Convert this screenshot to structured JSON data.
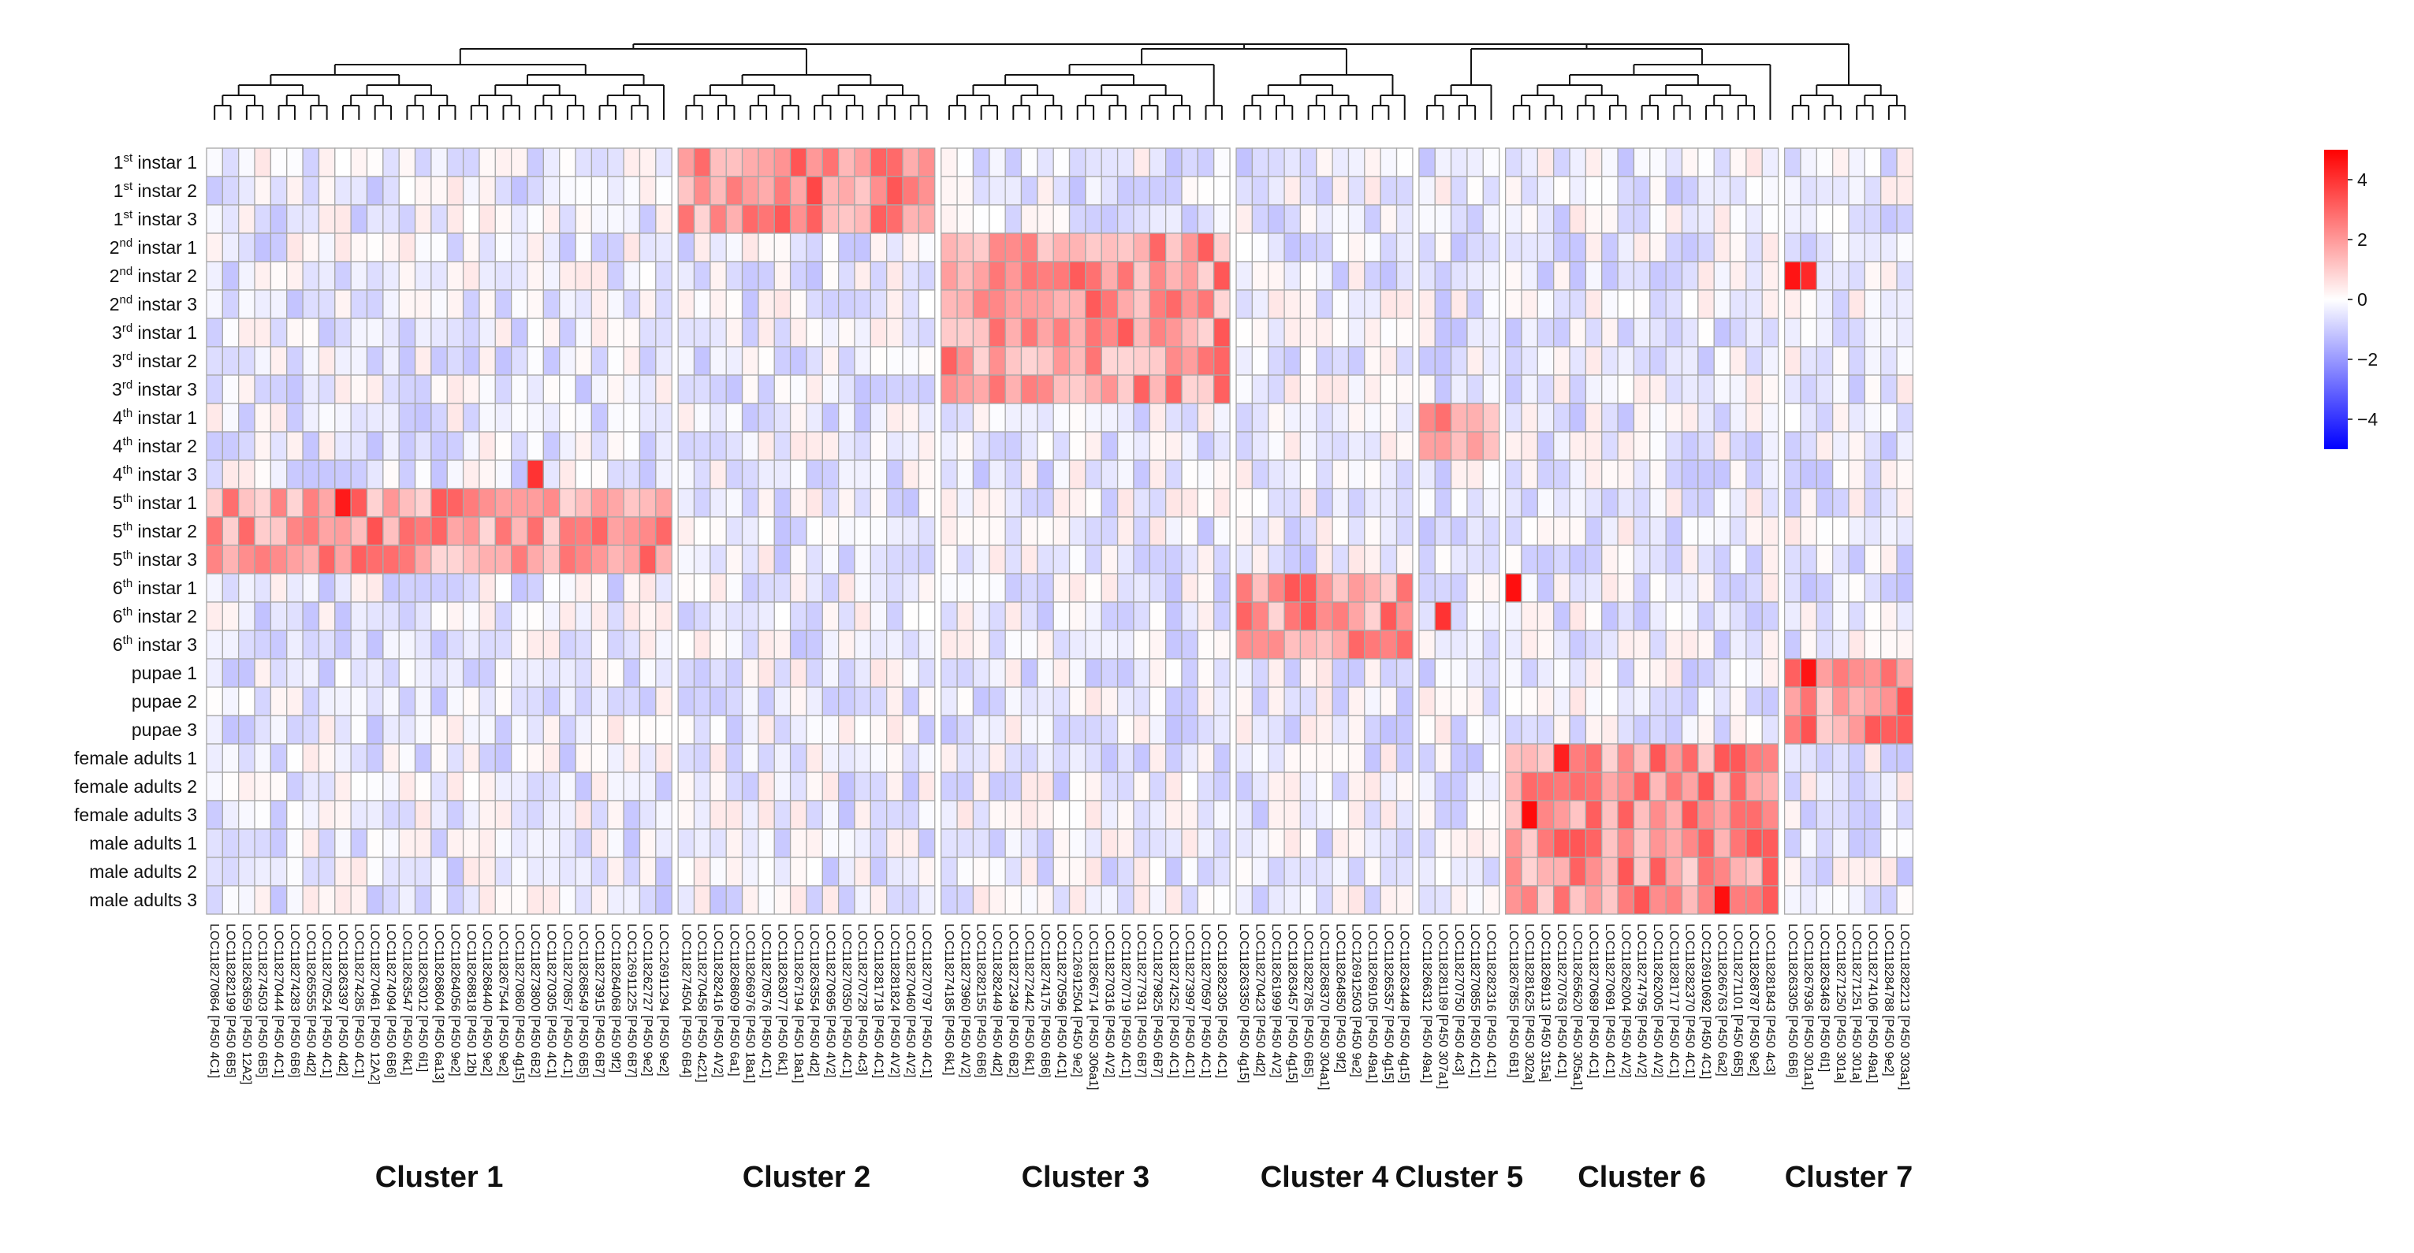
{
  "chart_data": {
    "type": "heatmap",
    "title": "",
    "rows": [
      {
        "label": "instar 1",
        "sup": "st",
        "num": "1"
      },
      {
        "label": "instar 2",
        "sup": "st",
        "num": "1"
      },
      {
        "label": "instar 3",
        "sup": "st",
        "num": "1"
      },
      {
        "label": "instar 1",
        "sup": "nd",
        "num": "2"
      },
      {
        "label": "instar 2",
        "sup": "nd",
        "num": "2"
      },
      {
        "label": "instar 3",
        "sup": "nd",
        "num": "2"
      },
      {
        "label": "instar 1",
        "sup": "rd",
        "num": "3"
      },
      {
        "label": "instar 2",
        "sup": "rd",
        "num": "3"
      },
      {
        "label": "instar 3",
        "sup": "rd",
        "num": "3"
      },
      {
        "label": "instar 1",
        "sup": "th",
        "num": "4"
      },
      {
        "label": "instar 2",
        "sup": "th",
        "num": "4"
      },
      {
        "label": "instar 3",
        "sup": "th",
        "num": "4"
      },
      {
        "label": "instar 1",
        "sup": "th",
        "num": "5"
      },
      {
        "label": "instar 2",
        "sup": "th",
        "num": "5"
      },
      {
        "label": "instar 3",
        "sup": "th",
        "num": "5"
      },
      {
        "label": "instar 1",
        "sup": "th",
        "num": "6"
      },
      {
        "label": "instar 2",
        "sup": "th",
        "num": "6"
      },
      {
        "label": "instar 3",
        "sup": "th",
        "num": "6"
      },
      {
        "label": "pupae 1",
        "sup": "",
        "num": ""
      },
      {
        "label": "pupae 2",
        "sup": "",
        "num": ""
      },
      {
        "label": "pupae 3",
        "sup": "",
        "num": ""
      },
      {
        "label": "female adults 1",
        "sup": "",
        "num": ""
      },
      {
        "label": "female adults 2",
        "sup": "",
        "num": ""
      },
      {
        "label": "female adults 3",
        "sup": "",
        "num": ""
      },
      {
        "label": "male adults 1",
        "sup": "",
        "num": ""
      },
      {
        "label": "male adults 2",
        "sup": "",
        "num": ""
      },
      {
        "label": "male adults 3",
        "sup": "",
        "num": ""
      }
    ],
    "clusters": [
      {
        "name": "Cluster 1",
        "stages": [
          12,
          13,
          14
        ],
        "genes": [
          "LOC118270864 [P450 4C1]",
          "LOC118282199 [P450 6B5]",
          "LOC118263659 [P450 12A2]",
          "LOC118274503 [P450 6B5]",
          "LOC118270444 [P450 4C1]",
          "LOC118274283 [P450 6B6]",
          "LOC118265555 [P450 4d2]",
          "LOC118270524 [P450 4C1]",
          "LOC118263397 [P450 4d2]",
          "LOC118274285 [P450 4C1]",
          "LOC118270461 [P450 12A2]",
          "LOC118274094 [P450 6B6]",
          "LOC118263547 [P450 6k1]",
          "LOC118263012 [P450 6l1]",
          "LOC118268604 [P450 6a13]",
          "LOC118264056 [P450 9e2]",
          "LOC118268818 [P450 12b]",
          "LOC118268440 [P450 9e2]",
          "LOC118267544 [P450 9e2]",
          "LOC118270860 [P450 4g15]",
          "LOC118273800 [P450 6B2]",
          "LOC118270305 [P450 4C1]",
          "LOC118270857 [P450 4C1]",
          "LOC118268549 [P450 6B5]",
          "LOC118273915 [P450 6B7]",
          "LOC118264068 [P450 9f2]",
          "LOC126911225 [P450 6B7]",
          "LOC118262727 [P450 9e2]",
          "LOC126911294 [P450 9e2]"
        ]
      },
      {
        "name": "Cluster 2",
        "stages": [
          0,
          1,
          2
        ],
        "genes": [
          "LOC118274504 [P450 6B4]",
          "LOC118270458 [P450 4c21]",
          "LOC118282416 [P450 4V2]",
          "LOC118268609 [P450 6a1]",
          "LOC118266976 [P450 18a1]",
          "LOC118270576 [P450 4C1]",
          "LOC118263077 [P450 6k1]",
          "LOC118267194 [P450 18a1]",
          "LOC118263554 [P450 4d2]",
          "LOC118270695 [P450 4V2]",
          "LOC118270350 [P450 4C1]",
          "LOC118270728 [P450 4c3]",
          "LOC118281718 [P450 4C1]",
          "LOC118281824 [P450 4V2]",
          "LOC118270460 [P450 4V2]",
          "LOC118270797 [P450 4C1]"
        ]
      },
      {
        "name": "Cluster 3",
        "stages": [
          3,
          4,
          5,
          6,
          7,
          8
        ],
        "genes": [
          "LOC118274185 [P450 6k1]",
          "LOC118273960 [P450 4V2]",
          "LOC118282155 [P450 6B6]",
          "LOC118282449 [P450 4d2]",
          "LOC118272349 [P450 6B2]",
          "LOC118272442 [P450 6k1]",
          "LOC118274175 [P450 6B6]",
          "LOC118270596 [P450 4C1]",
          "LOC126912504 [P450 9e2]",
          "LOC118266714 [P450 306a1]",
          "LOC118270316 [P450 4V2]",
          "LOC118270719 [P450 4C1]",
          "LOC118277931 [P450 6B7]",
          "LOC118279825 [P450 6B7]",
          "LOC118274252 [P450 4C1]",
          "LOC118273997 [P450 4C1]",
          "LOC118270597 [P450 4C1]",
          "LOC118282305 [P450 4C1]"
        ]
      },
      {
        "name": "Cluster 4",
        "stages": [
          15,
          16,
          17
        ],
        "genes": [
          "LOC118263350 [P450 4g15]",
          "LOC118270423 [P450 4d2]",
          "LOC118261999 [P450 4V2]",
          "LOC118263457 [P450 4g15]",
          "LOC118282785 [P450 6B5]",
          "LOC118268370 [P450 304a1]",
          "LOC118264850 [P450 9f2]",
          "LOC126912503 [P450 9e2]",
          "LOC118269105 [P450 49a1]",
          "LOC118265357 [P450 4g15]",
          "LOC118263448 [P450 4g15]"
        ]
      },
      {
        "name": "Cluster 5",
        "stages": [
          9,
          10
        ],
        "genes": [
          "LOC118266312 [P450 49a1]",
          "LOC118281189 [P450 307a1]",
          "LOC118270750 [P450 4c3]",
          "LOC118270855 [P450 4C1]",
          "LOC118282316 [P450 4C1]"
        ]
      },
      {
        "name": "Cluster 6",
        "stages": [
          21,
          22,
          23,
          24,
          25,
          26
        ],
        "genes": [
          "LOC118267855 [P450 6B1]",
          "LOC118281625 [P450 302a]",
          "LOC118269113 [P450 315a]",
          "LOC118270763 [P450 4C1]",
          "LOC118265620 [P450 305a1]",
          "LOC118270689 [P450 4C1]",
          "LOC118270691 [P450 4C1]",
          "LOC118262004 [P450 4V2]",
          "LOC118274795 [P450 4V2]",
          "LOC118262005 [P450 4V2]",
          "LOC118281717 [P450 4C1]",
          "LOC118282370 [P450 4C1]",
          "LOC126910692 [P450 4C1]",
          "LOC118266763 [P450 6a2]",
          "LOC118271101 [P450 6B5]",
          "LOC118268787 [P450 9e2]",
          "LOC118281843 [P450 4c3]"
        ]
      },
      {
        "name": "Cluster 7",
        "stages": [
          18,
          19,
          20
        ],
        "genes": [
          "LOC118263305 [P450 6B6]",
          "LOC118267936 [P450 301a1]",
          "LOC118263463 [P450 6l1]",
          "LOC118271250 [P450 301a]",
          "LOC118271251 [P450 301a]",
          "LOC118274106 [P450 49a1]",
          "LOC118284788 [P450 9e2]",
          "LOC118282213 [P450 303a1]"
        ]
      }
    ],
    "color_scale": {
      "min": -5,
      "max": 5,
      "low": "#0000ff",
      "mid": "#ffffff",
      "high": "#ff0000",
      "ticks": [
        4,
        2,
        0,
        -2,
        -4
      ]
    },
    "highlights": [
      {
        "r": 4,
        "c": 96,
        "v": 4.6
      },
      {
        "r": 4,
        "c": 97,
        "v": 4.2
      },
      {
        "r": 1,
        "c": 37,
        "v": 3.6
      },
      {
        "r": 12,
        "c": 8,
        "v": 4.5
      },
      {
        "r": 11,
        "c": 20,
        "v": 4.0
      },
      {
        "r": 16,
        "c": 75,
        "v": 4.0
      },
      {
        "r": 15,
        "c": 79,
        "v": 4.7
      },
      {
        "r": 23,
        "c": 80,
        "v": 4.8
      },
      {
        "r": 26,
        "c": 92,
        "v": 4.7
      },
      {
        "r": 18,
        "c": 97,
        "v": 4.6
      },
      {
        "r": 21,
        "c": 82,
        "v": 4.4
      }
    ]
  }
}
